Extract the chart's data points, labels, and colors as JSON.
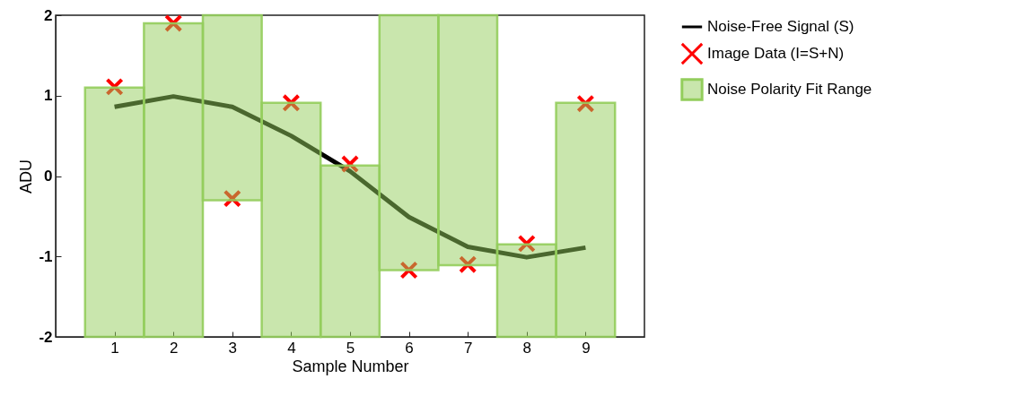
{
  "chart_data": {
    "type": "bar",
    "xlabel": "Sample Number",
    "ylabel": "ADU",
    "x": [
      1,
      2,
      3,
      4,
      5,
      6,
      7,
      8,
      9
    ],
    "xlim": [
      0,
      10
    ],
    "xticks": [
      1,
      2,
      3,
      4,
      5,
      6,
      7,
      8,
      9
    ],
    "ylim": [
      -2,
      2
    ],
    "yticks": [
      -2,
      -1,
      0,
      1,
      2
    ],
    "grid": false,
    "legend": "right",
    "series": [
      {
        "name": "Noise-Free Signal (S)",
        "type": "line",
        "color": "#000000",
        "values": [
          0.86,
          0.99,
          0.86,
          0.5,
          0.06,
          -0.51,
          -0.88,
          -1.01,
          -0.89
        ]
      },
      {
        "name": "Image Data (I=S+N)",
        "type": "scatter",
        "marker": "cross",
        "color": "#ff0000",
        "values": [
          1.11,
          1.9,
          -0.28,
          0.91,
          0.15,
          -1.17,
          -1.1,
          -0.84,
          0.9
        ]
      },
      {
        "name": "Noise Polarity Fit Range",
        "color": "#93cd5c",
        "base": [
          -2,
          -2,
          -0.3,
          -2,
          -2,
          -1.17,
          -1.11,
          -2,
          -2
        ],
        "values": [
          3.1,
          3.9,
          2.3,
          2.91,
          2.13,
          3.17,
          3.11,
          1.15,
          2.91
        ]
      }
    ]
  }
}
